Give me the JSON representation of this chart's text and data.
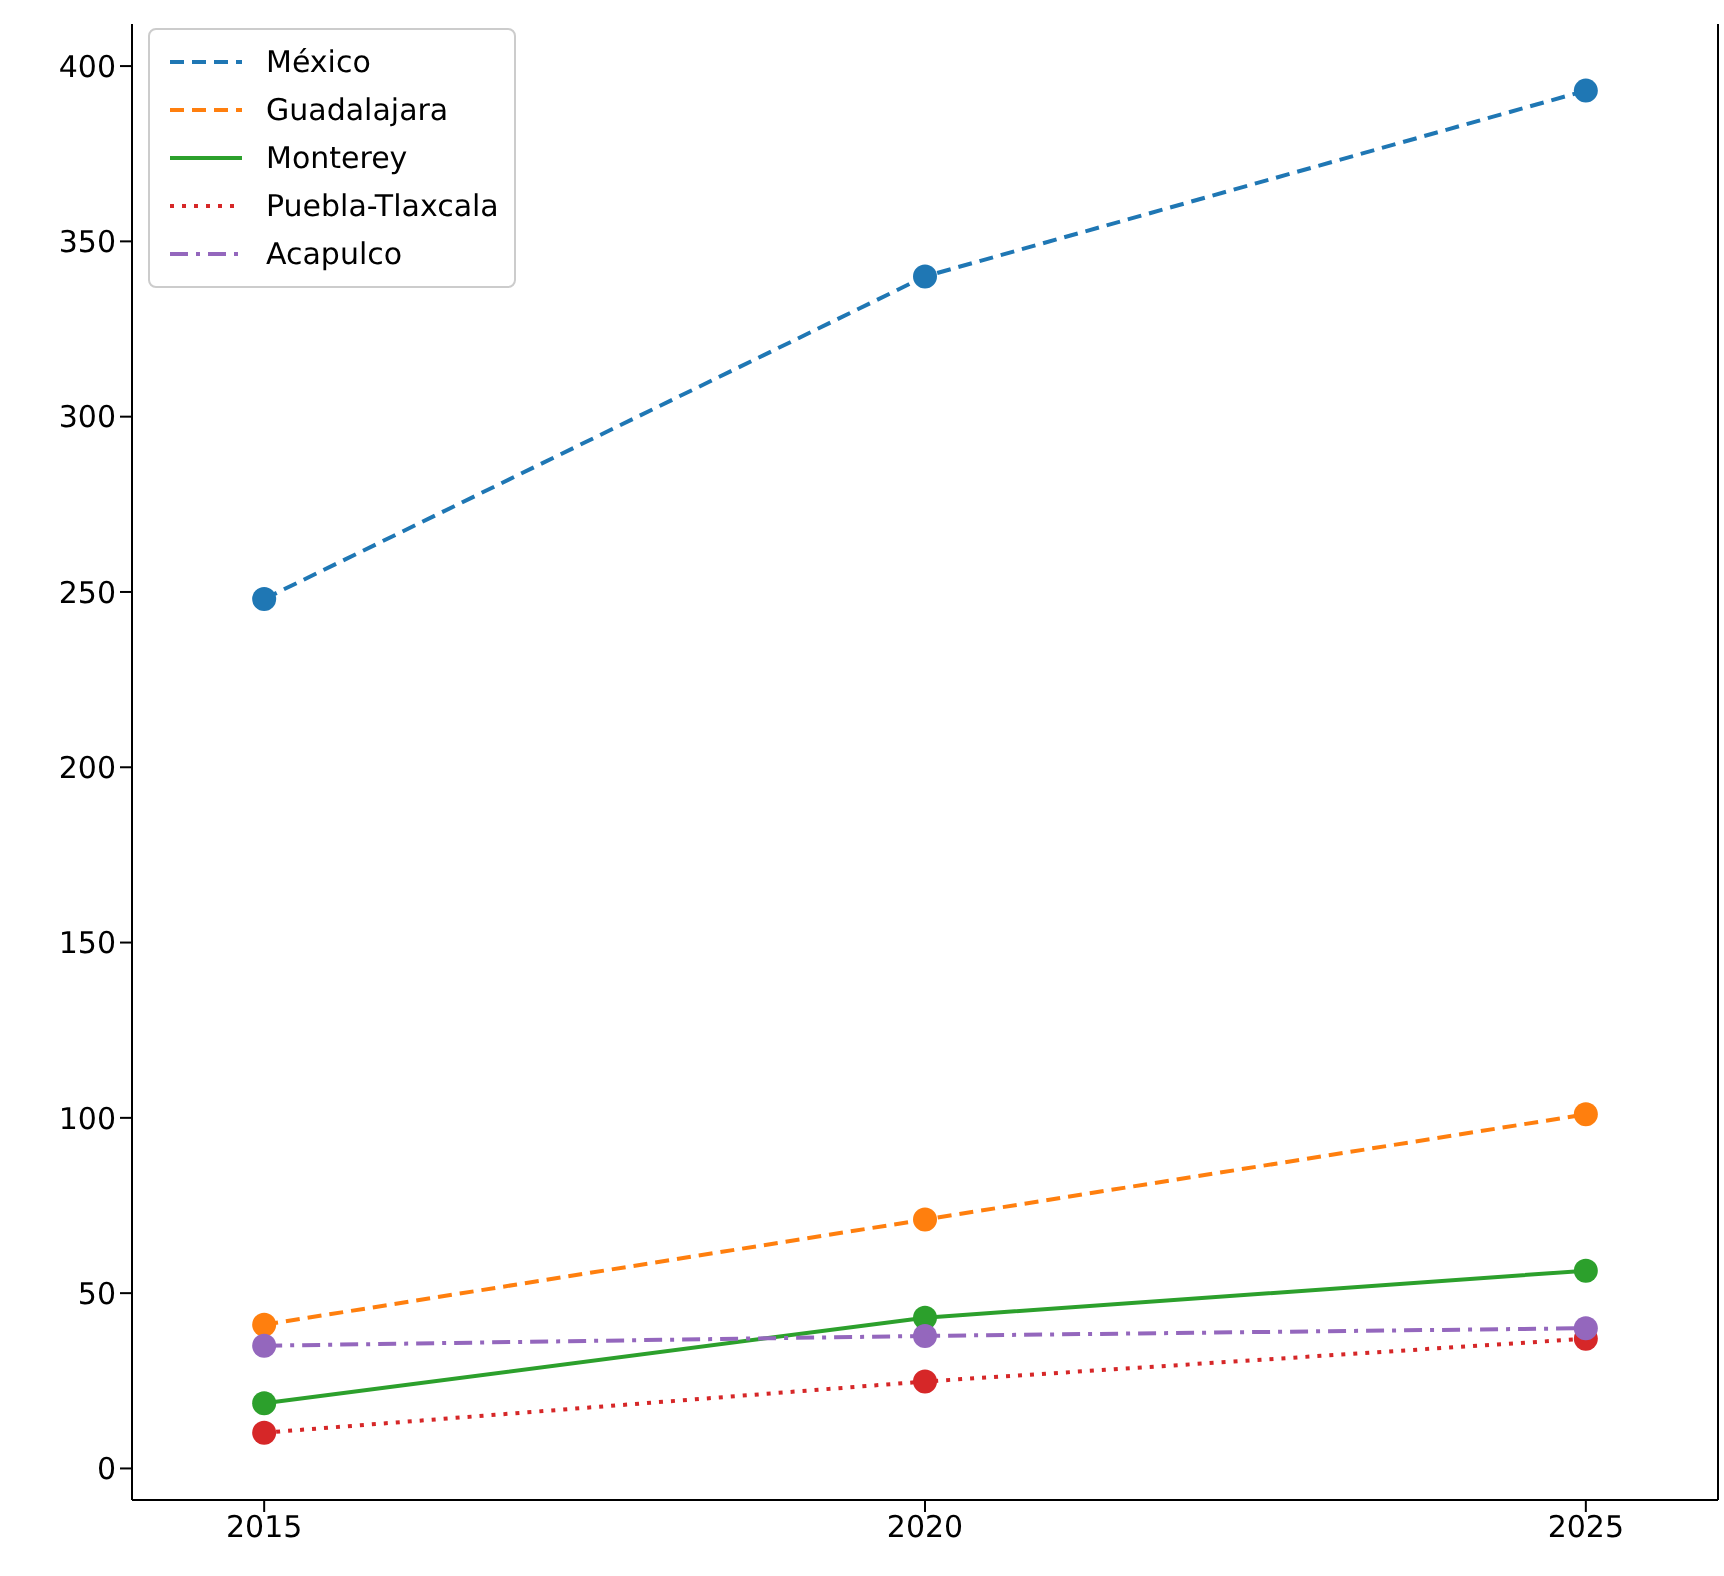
{
  "chart_data": {
    "type": "line",
    "x": [
      2015,
      2020,
      2025
    ],
    "series": [
      {
        "name": "México",
        "color": "#1f77b4",
        "values": [
          248,
          340,
          393
        ],
        "line_style": "dashed"
      },
      {
        "name": "Guadalajara",
        "color": "#ff7f0e",
        "values": [
          41,
          71,
          101
        ],
        "line_style": "dashed"
      },
      {
        "name": "Monterey",
        "color": "#2ca02c",
        "values": [
          18.6,
          43,
          56.4
        ],
        "line_style": "solid"
      },
      {
        "name": "Puebla-Tlaxcala",
        "color": "#d62728",
        "values": [
          10.2,
          24.8,
          37
        ],
        "line_style": "dotted"
      },
      {
        "name": "Acapulco",
        "color": "#9467bd",
        "values": [
          35,
          37.8,
          40
        ],
        "line_style": "dashdot"
      }
    ],
    "xlim": [
      2014,
      2026
    ],
    "xticks": [
      2015,
      2020,
      2025
    ],
    "ylim": [
      -9,
      412
    ],
    "yticks": [
      0,
      50,
      100,
      150,
      200,
      250,
      300,
      350,
      400
    ],
    "grid": false,
    "legend": "top left",
    "marker": "circle"
  }
}
